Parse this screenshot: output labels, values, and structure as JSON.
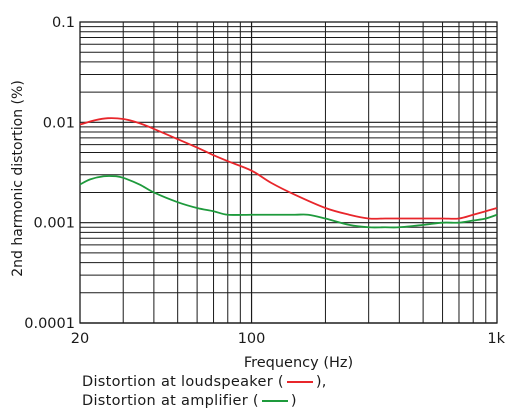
{
  "chart_data": {
    "type": "line",
    "title": "",
    "xlabel": "Frequency (Hz)",
    "ylabel": "2nd harmonic distortion (%)",
    "x_scale": "log",
    "y_scale": "log",
    "xlim": [
      20,
      1000
    ],
    "ylim": [
      0.0001,
      0.1
    ],
    "x_ticks": [
      {
        "value": 20,
        "label": "20"
      },
      {
        "value": 100,
        "label": "100"
      },
      {
        "value": 1000,
        "label": "1k"
      }
    ],
    "y_ticks": [
      {
        "value": 0.0001,
        "label": "0.0001"
      },
      {
        "value": 0.001,
        "label": "0.001"
      },
      {
        "value": 0.01,
        "label": "0.01"
      },
      {
        "value": 0.1,
        "label": "0.1"
      }
    ],
    "grid": true,
    "series": [
      {
        "name": "Distortion at loudspeaker",
        "color": "#e8262b",
        "x": [
          20,
          23,
          26,
          30,
          35,
          40,
          50,
          60,
          70,
          80,
          100,
          120,
          150,
          200,
          250,
          300,
          350,
          400,
          500,
          600,
          700,
          800,
          900,
          1000
        ],
        "y": [
          0.0095,
          0.0105,
          0.011,
          0.0108,
          0.0098,
          0.0086,
          0.0068,
          0.0056,
          0.0047,
          0.0041,
          0.0033,
          0.0025,
          0.0019,
          0.0014,
          0.0012,
          0.0011,
          0.0011,
          0.0011,
          0.0011,
          0.0011,
          0.0011,
          0.0012,
          0.0013,
          0.0014
        ]
      },
      {
        "name": "Distortion at amplifier",
        "color": "#1e9a3c",
        "x": [
          20,
          22,
          25,
          28,
          30,
          35,
          40,
          50,
          60,
          70,
          80,
          100,
          120,
          150,
          170,
          200,
          250,
          300,
          350,
          400,
          500,
          600,
          700,
          800,
          900,
          1000
        ],
        "y": [
          0.0024,
          0.0027,
          0.0029,
          0.0029,
          0.0028,
          0.0024,
          0.002,
          0.0016,
          0.0014,
          0.0013,
          0.0012,
          0.0012,
          0.0012,
          0.0012,
          0.0012,
          0.0011,
          0.00095,
          0.0009,
          0.0009,
          0.0009,
          0.00095,
          0.001,
          0.001,
          0.00105,
          0.0011,
          0.0012
        ]
      }
    ]
  },
  "legend": {
    "line1_prefix": "Distortion at loudspeaker (",
    "line1_suffix": "),",
    "line2_prefix": "Distortion at amplifier (",
    "line2_suffix": ")"
  }
}
